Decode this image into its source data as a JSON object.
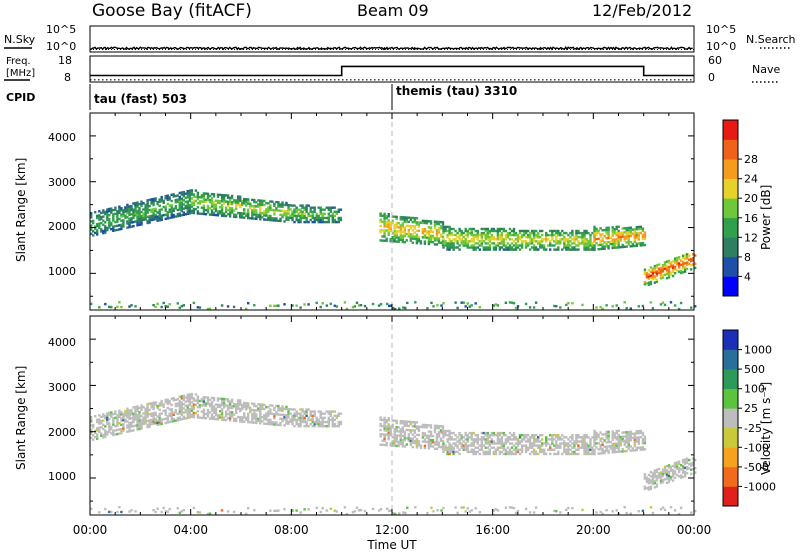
{
  "header": {
    "station": "Goose Bay (fitACF)",
    "beam": "Beam 09",
    "date": "12/Feb/2012"
  },
  "noise_panel": {
    "left_label": "N.Sky",
    "right_label": "N.Search",
    "left_ticks": [
      "10^5",
      "10^0"
    ],
    "right_ticks": [
      "10^5",
      "10^0"
    ]
  },
  "freq_panel": {
    "left_label_line1": "Freq.",
    "left_label_line2": "[MHz]",
    "right_label": "Nave",
    "left_ticks": [
      "18",
      "8"
    ],
    "right_ticks": [
      "60",
      "0"
    ],
    "cpid_label": "CPID",
    "cpid_segments": [
      {
        "label": "tau (fast) 503",
        "start_hour": 0
      },
      {
        "label": "themis (tau) 3310",
        "start_hour": 12
      }
    ]
  },
  "axes": {
    "ylabel": "Slant Range [km]",
    "xlabel": "Time UT",
    "x_ticks": [
      "00:00",
      "04:00",
      "08:00",
      "12:00",
      "16:00",
      "20:00",
      "00:00"
    ],
    "y_ticks": [
      "1000",
      "2000",
      "3000",
      "4000"
    ]
  },
  "colorbars": {
    "power": {
      "label": "Power [dB]",
      "ticks": [
        "4",
        "8",
        "12",
        "16",
        "20",
        "24",
        "28"
      ],
      "colors": [
        "#0000ff",
        "#1f4fa8",
        "#2f7e62",
        "#31a04c",
        "#6ec83a",
        "#e6d22a",
        "#f59c1c",
        "#f0621a",
        "#e81a14"
      ]
    },
    "velocity": {
      "label": "Velocity [m s⁻¹]",
      "ticks": [
        "1000",
        "500",
        "100",
        "25",
        "-25",
        "-100",
        "-500",
        "-1000"
      ],
      "colors": [
        "#1c2fb8",
        "#2a6e9a",
        "#2c9a58",
        "#5cc33c",
        "#bdbdbd",
        "#c9c93a",
        "#f5a21e",
        "#f26b1a",
        "#e0201a"
      ]
    }
  },
  "chart_data": {
    "type": "heatmap",
    "title": "Goose Bay (fitACF) Beam 09 12/Feb/2012",
    "x_unit": "hours UT",
    "xlim": [
      0,
      24
    ],
    "ylim": [
      200,
      4500
    ],
    "noise": {
      "sky_level_log10": 0.4,
      "search_level_log10": 0.1
    },
    "frequency_mhz": [
      {
        "start_hour": 0,
        "end_hour": 10,
        "value": 10.5
      },
      {
        "start_hour": 10,
        "end_hour": 22,
        "value": 14.0
      },
      {
        "start_hour": 22,
        "end_hour": 24,
        "value": 10.5
      }
    ],
    "nave": 5,
    "cpid_change_hour": 12,
    "echo_bands": [
      {
        "hour_start": 0,
        "hour_end": 4,
        "range_lower_km": [
          1800,
          2300
        ],
        "range_upper_km": [
          2300,
          2800
        ],
        "power_db": 12
      },
      {
        "hour_start": 4,
        "hour_end": 8,
        "range_lower_km": [
          2300,
          2100
        ],
        "range_upper_km": [
          2800,
          2500
        ],
        "power_db": 16
      },
      {
        "hour_start": 8,
        "hour_end": 10,
        "range_lower_km": [
          2100,
          2100
        ],
        "range_upper_km": [
          2500,
          2400
        ],
        "power_db": 14
      },
      {
        "hour_start": 11.5,
        "hour_end": 14,
        "range_lower_km": [
          1700,
          1600
        ],
        "range_upper_km": [
          2300,
          2100
        ],
        "power_db": 20
      },
      {
        "hour_start": 14,
        "hour_end": 20,
        "range_lower_km": [
          1500,
          1500
        ],
        "range_upper_km": [
          2000,
          1900
        ],
        "power_db": 18
      },
      {
        "hour_start": 20,
        "hour_end": 22,
        "range_lower_km": [
          1500,
          1600
        ],
        "range_upper_km": [
          2000,
          2000
        ],
        "power_db": 22
      },
      {
        "hour_start": 22,
        "hour_end": 24,
        "range_lower_km": [
          700,
          1100
        ],
        "range_upper_km": [
          1100,
          1500
        ],
        "power_db": 26
      }
    ],
    "velocity_dominant_m_s": [
      -25,
      25
    ]
  }
}
